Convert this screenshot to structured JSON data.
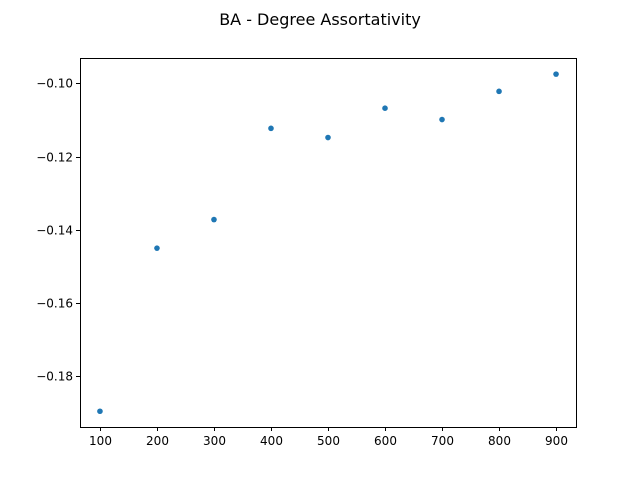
{
  "chart_data": {
    "type": "scatter",
    "title": "BA - Degree Assortativity",
    "xlabel": "",
    "ylabel": "",
    "x": [
      100,
      200,
      300,
      400,
      500,
      600,
      700,
      800,
      900
    ],
    "series": [
      {
        "values": [
          -0.1895,
          -0.145,
          -0.1372,
          -0.1123,
          -0.1148,
          -0.1068,
          -0.1099,
          -0.1022,
          -0.0975
        ],
        "color": "#1f77b4"
      }
    ],
    "xlim": [
      65,
      935
    ],
    "ylim": [
      -0.1938,
      -0.0931
    ],
    "xticks": [
      100,
      200,
      300,
      400,
      500,
      600,
      700,
      800,
      900
    ],
    "yticks": [
      -0.18,
      -0.16,
      -0.14,
      -0.12,
      -0.1
    ],
    "xtick_labels": [
      "100",
      "200",
      "300",
      "400",
      "500",
      "600",
      "700",
      "800",
      "900"
    ],
    "ytick_labels": [
      "−0.18",
      "−0.16",
      "−0.14",
      "−0.12",
      "−0.10"
    ],
    "grid": false,
    "legend": "none"
  }
}
